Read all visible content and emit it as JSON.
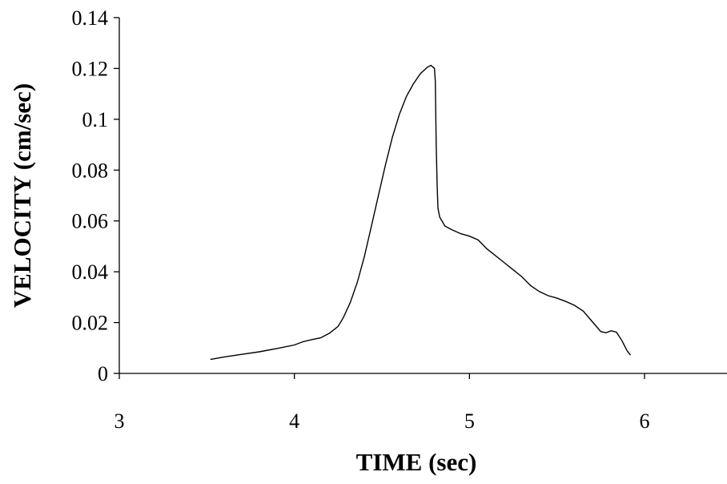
{
  "chart_data": {
    "type": "line",
    "xlabel": "TIME (sec)",
    "ylabel": "VELOCITY (cm/sec)",
    "xlim": [
      3,
      6.5
    ],
    "ylim": [
      0,
      0.14
    ],
    "x_ticks": [
      "3",
      "4",
      "5",
      "6"
    ],
    "y_ticks": [
      "0",
      "0.02",
      "0.04",
      "0.06",
      "0.08",
      "0.1",
      "0.12",
      "0.14"
    ],
    "grid": false,
    "series": [
      {
        "color": "#000000",
        "points": [
          [
            3.52,
            0.0055
          ],
          [
            3.6,
            0.0065
          ],
          [
            3.7,
            0.0075
          ],
          [
            3.8,
            0.0085
          ],
          [
            3.9,
            0.0098
          ],
          [
            4.0,
            0.0112
          ],
          [
            4.05,
            0.0125
          ],
          [
            4.1,
            0.0133
          ],
          [
            4.15,
            0.014
          ],
          [
            4.2,
            0.0158
          ],
          [
            4.25,
            0.0185
          ],
          [
            4.28,
            0.022
          ],
          [
            4.32,
            0.028
          ],
          [
            4.36,
            0.036
          ],
          [
            4.4,
            0.046
          ],
          [
            4.44,
            0.058
          ],
          [
            4.48,
            0.07
          ],
          [
            4.52,
            0.082
          ],
          [
            4.56,
            0.093
          ],
          [
            4.6,
            0.102
          ],
          [
            4.64,
            0.109
          ],
          [
            4.68,
            0.114
          ],
          [
            4.72,
            0.118
          ],
          [
            4.76,
            0.1205
          ],
          [
            4.78,
            0.1212
          ],
          [
            4.8,
            0.12
          ],
          [
            4.805,
            0.115
          ],
          [
            4.81,
            0.09
          ],
          [
            4.815,
            0.075
          ],
          [
            4.82,
            0.065
          ],
          [
            4.83,
            0.0615
          ],
          [
            4.86,
            0.058
          ],
          [
            4.9,
            0.0565
          ],
          [
            4.95,
            0.055
          ],
          [
            5.0,
            0.054
          ],
          [
            5.05,
            0.0525
          ],
          [
            5.1,
            0.049
          ],
          [
            5.2,
            0.0435
          ],
          [
            5.3,
            0.038
          ],
          [
            5.35,
            0.0345
          ],
          [
            5.4,
            0.0322
          ],
          [
            5.45,
            0.0306
          ],
          [
            5.5,
            0.0296
          ],
          [
            5.55,
            0.0283
          ],
          [
            5.6,
            0.0268
          ],
          [
            5.65,
            0.0245
          ],
          [
            5.7,
            0.0205
          ],
          [
            5.75,
            0.0165
          ],
          [
            5.78,
            0.016
          ],
          [
            5.81,
            0.0168
          ],
          [
            5.84,
            0.0162
          ],
          [
            5.87,
            0.013
          ],
          [
            5.9,
            0.009
          ],
          [
            5.92,
            0.0072
          ]
        ]
      }
    ]
  }
}
